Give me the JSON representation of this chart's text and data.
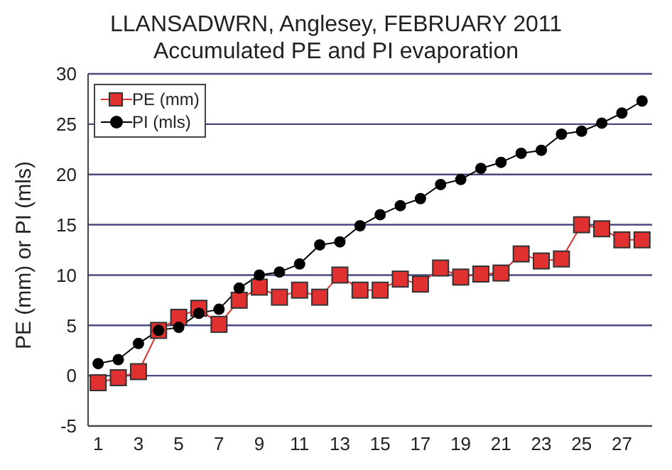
{
  "chart_data": {
    "type": "line",
    "title": "LLANSADWRN, Anglesey, FEBRUARY 2011",
    "subtitle": "Accumulated PE and PI evaporation",
    "ylabel": "PE (mm) or PI (mls)",
    "x": [
      1,
      2,
      3,
      4,
      5,
      6,
      7,
      8,
      9,
      10,
      11,
      12,
      13,
      14,
      15,
      16,
      17,
      18,
      19,
      20,
      21,
      22,
      23,
      24,
      25,
      26,
      27,
      28
    ],
    "series": [
      {
        "name": "PE (mm)",
        "color": "#e03030",
        "marker": "square",
        "values": [
          -0.7,
          -0.2,
          0.4,
          4.5,
          5.8,
          6.7,
          5.1,
          7.5,
          8.8,
          7.8,
          8.5,
          7.8,
          10,
          8.5,
          8.5,
          9.6,
          9.1,
          10.7,
          9.8,
          10.1,
          10.2,
          12.1,
          11.4,
          11.6,
          15,
          14.6,
          13.5,
          13.5
        ]
      },
      {
        "name": "PI (mls)",
        "color": "#000000",
        "marker": "circle",
        "values": [
          1.2,
          1.6,
          3.2,
          4.5,
          4.8,
          6.2,
          6.6,
          8.7,
          10,
          10.3,
          11.1,
          13,
          13.3,
          14.9,
          16,
          16.9,
          17.6,
          19,
          19.5,
          20.6,
          21.2,
          22.1,
          22.4,
          24,
          24.3,
          25.1,
          26.1,
          27.3
        ]
      }
    ],
    "xlim": [
      0.5,
      28.5
    ],
    "xticks": [
      1,
      3,
      5,
      7,
      9,
      11,
      13,
      15,
      17,
      19,
      21,
      23,
      25,
      27
    ],
    "ylim": [
      -5,
      30
    ],
    "yticks": [
      -5,
      0,
      5,
      10,
      15,
      20,
      25,
      30
    ],
    "grid": "y",
    "legend": "top left",
    "line_style": "solid"
  }
}
